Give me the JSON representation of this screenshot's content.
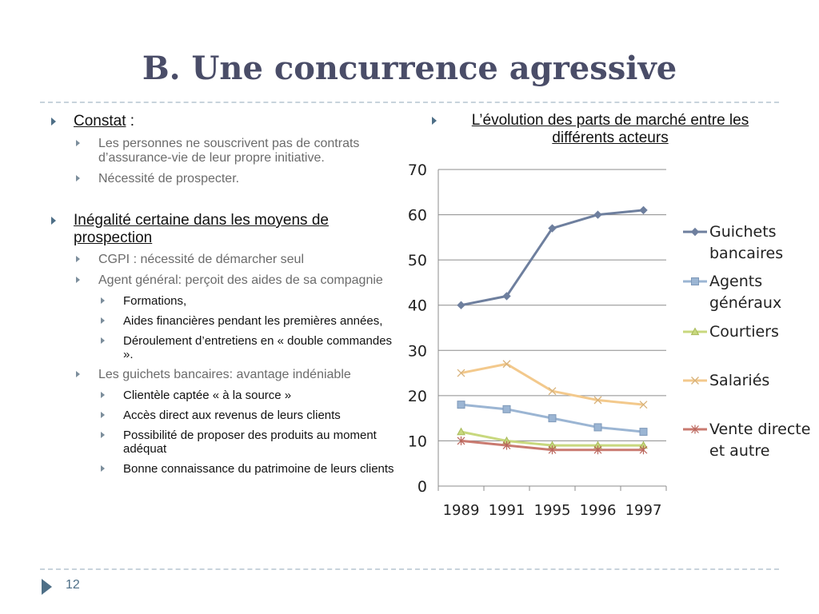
{
  "slide": {
    "title": "B. Une concurrence agressive",
    "page_number": "12"
  },
  "left": {
    "constat": {
      "label": "Constat",
      "suffix": " :",
      "items": [
        "Les personnes ne souscrivent pas de contrats d’assurance-vie de leur propre initiative.",
        "Nécessité de prospecter."
      ]
    },
    "inegalite": {
      "label": "Inégalité certaine dans les moyens de prospection",
      "cgpi": "CGPI : nécessité de démarcher seul",
      "agent": "Agent général: perçoit des aides de sa compagnie",
      "agent_items": [
        "Formations,",
        "Aides financières pendant les premières années,",
        "Déroulement d’entretiens en  « double commandes »."
      ],
      "guichets": "Les guichets bancaires: avantage indéniable",
      "guichets_items": [
        "Clientèle captée « à la source »",
        "Accès direct aux revenus de leurs clients",
        "Possibilité de proposer des produits au moment adéquat",
        "Bonne connaissance du patrimoine de leurs clients"
      ]
    }
  },
  "right": {
    "heading": "L’évolution des parts de marché entre les différents acteurs"
  },
  "chart_data": {
    "type": "line",
    "categories": [
      "1989",
      "1991",
      "1995",
      "1996",
      "1997"
    ],
    "ylim": [
      0,
      70
    ],
    "yticks": [
      "0",
      "10",
      "20",
      "30",
      "40",
      "50",
      "60",
      "70"
    ],
    "grid": true,
    "legend": "right",
    "series": [
      {
        "name": "Guichets bancaires",
        "values": [
          40,
          42,
          57,
          60,
          61
        ],
        "color": "#6e7f9e",
        "marker": "diamond"
      },
      {
        "name": "Agents généraux",
        "values": [
          18,
          17,
          15,
          13,
          12
        ],
        "color": "#9bb5d3",
        "marker": "square"
      },
      {
        "name": "Courtiers",
        "values": [
          12,
          10,
          9,
          9,
          9
        ],
        "color": "#c8d87e",
        "marker": "triangle"
      },
      {
        "name": "Salariés",
        "values": [
          25,
          27,
          21,
          19,
          18
        ],
        "color": "#f3c98c",
        "marker": "x"
      },
      {
        "name": "Vente directe et autre",
        "values": [
          10,
          9,
          8,
          8,
          8
        ],
        "color": "#c97a70",
        "marker": "star"
      }
    ]
  }
}
